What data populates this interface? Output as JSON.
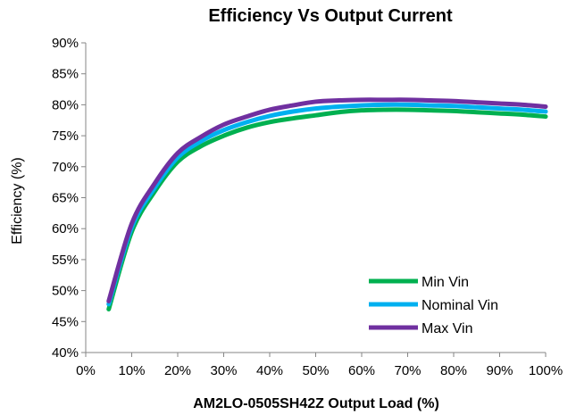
{
  "chart_data": {
    "type": "line",
    "title": "Efficiency Vs Output Current",
    "xlabel": "AM2LO-0505SH42Z  Output Load (%)",
    "ylabel": "Efficiency (%)",
    "xlim": [
      0,
      100
    ],
    "ylim": [
      40,
      90
    ],
    "x_ticks": [
      "0%",
      "10%",
      "20%",
      "30%",
      "40%",
      "50%",
      "60%",
      "70%",
      "80%",
      "90%",
      "100%"
    ],
    "y_ticks": [
      "40%",
      "45%",
      "50%",
      "55%",
      "60%",
      "65%",
      "70%",
      "75%",
      "80%",
      "85%",
      "90%"
    ],
    "grid": false,
    "legend_position": "bottom-right",
    "x": [
      5,
      10,
      15,
      20,
      25,
      30,
      35,
      40,
      45,
      50,
      55,
      60,
      65,
      70,
      75,
      80,
      85,
      90,
      95,
      100
    ],
    "series": [
      {
        "name": "Min Vin",
        "color": "#00b050",
        "values": [
          47.0,
          59.5,
          66.0,
          70.8,
          73.3,
          75.0,
          76.3,
          77.2,
          77.8,
          78.3,
          78.8,
          79.1,
          79.2,
          79.2,
          79.1,
          79.0,
          78.8,
          78.6,
          78.4,
          78.1
        ]
      },
      {
        "name": "Nominal Vin",
        "color": "#00b0f0",
        "values": [
          47.8,
          60.2,
          66.6,
          71.5,
          74.1,
          75.9,
          77.2,
          78.2,
          78.9,
          79.4,
          79.7,
          79.9,
          80.0,
          80.0,
          79.9,
          79.8,
          79.6,
          79.4,
          79.2,
          78.9
        ]
      },
      {
        "name": "Max Vin",
        "color": "#7030a0",
        "values": [
          48.3,
          60.8,
          67.3,
          72.2,
          74.8,
          76.8,
          78.1,
          79.2,
          79.9,
          80.5,
          80.7,
          80.8,
          80.8,
          80.8,
          80.7,
          80.6,
          80.4,
          80.2,
          80.0,
          79.7
        ]
      }
    ]
  }
}
